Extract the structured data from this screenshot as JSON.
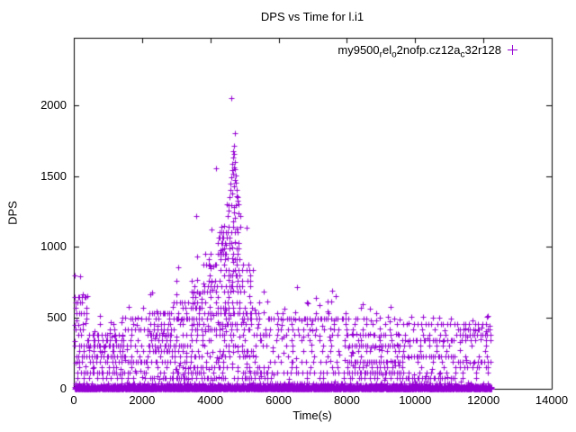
{
  "chart_data": {
    "type": "scatter",
    "title": "DPS vs Time for l.i1",
    "xlabel": "Time(s)",
    "ylabel": "DPS",
    "xlim": [
      0,
      14000
    ],
    "ylim": [
      0,
      2476
    ],
    "xticks": [
      0,
      2000,
      4000,
      6000,
      8000,
      10000,
      12000,
      14000
    ],
    "yticks": [
      0,
      500,
      1000,
      1500,
      2000
    ],
    "grid": false,
    "legend_position": "top-right-inside",
    "series": [
      {
        "name": "my9500_rel_o2nofp.cz12a_c32r128",
        "name_parts": [
          {
            "t": "my9500"
          },
          {
            "t": "r",
            "sub": true
          },
          {
            "t": "el"
          },
          {
            "t": "o",
            "sub": true
          },
          {
            "t": "2nofp.cz12a"
          },
          {
            "t": "c",
            "sub": true
          },
          {
            "t": "32r128"
          }
        ],
        "color": "#9400d3",
        "marker": "plus",
        "t_min": 30,
        "t_max": 12233,
        "max_point": [
          4620,
          2051
        ],
        "row_step_dps": 38,
        "bands_format": "[t_start_s, t_end_s, dense_band_top_dps, sparse_top_dps]",
        "bands": [
          [
            30,
            200,
            670,
            800
          ],
          [
            200,
            420,
            650,
            670
          ],
          [
            420,
            1500,
            460,
            520
          ],
          [
            1500,
            2200,
            500,
            600
          ],
          [
            2200,
            2900,
            560,
            680
          ],
          [
            2900,
            3400,
            640,
            870
          ],
          [
            3400,
            3800,
            760,
            1000
          ],
          [
            3800,
            4200,
            950,
            1300
          ],
          [
            4200,
            4500,
            1150,
            1450
          ],
          [
            4500,
            4900,
            1320,
            1800
          ],
          [
            4900,
            5250,
            900,
            1350
          ],
          [
            5250,
            5700,
            620,
            700
          ],
          [
            5700,
            8000,
            540,
            640
          ],
          [
            8000,
            9600,
            520,
            600
          ],
          [
            9600,
            11200,
            490,
            580
          ],
          [
            11200,
            12233,
            470,
            540
          ]
        ],
        "baseline_row": {
          "t0": 30,
          "t1": 12233,
          "y_max": 30,
          "step_s": 3.5
        },
        "spike_cluster": [
          [
            4560,
            1350
          ],
          [
            4580,
            1400
          ],
          [
            4600,
            1445
          ],
          [
            4615,
            1490
          ],
          [
            4630,
            1540
          ],
          [
            4645,
            1585
          ],
          [
            4660,
            1630
          ],
          [
            4675,
            1675
          ],
          [
            4690,
            1715
          ],
          [
            4705,
            1660
          ],
          [
            4715,
            1600
          ],
          [
            4725,
            1550
          ],
          [
            4740,
            1505
          ],
          [
            4755,
            1455
          ],
          [
            4770,
            1405
          ],
          [
            4785,
            1360
          ],
          [
            4800,
            1330
          ],
          [
            4650,
            1380
          ],
          [
            4700,
            1430
          ],
          [
            4730,
            1470
          ],
          [
            4665,
            1520
          ],
          [
            4685,
            1560
          ]
        ],
        "outliers": [
          [
            30,
            800
          ],
          [
            260,
            667
          ],
          [
            3064,
            857
          ],
          [
            3593,
            1219
          ],
          [
            4174,
            1556
          ],
          [
            4620,
            2051
          ],
          [
            4727,
            1803
          ],
          [
            6540,
            717
          ],
          [
            7560,
            690
          ],
          [
            7660,
            655
          ]
        ]
      }
    ],
    "render": {
      "seed": 1337,
      "row_fill_pow": 1.6,
      "row_c1": 3.2,
      "row_c0": 0.4,
      "sparse_per_s": 0.0033
    }
  }
}
